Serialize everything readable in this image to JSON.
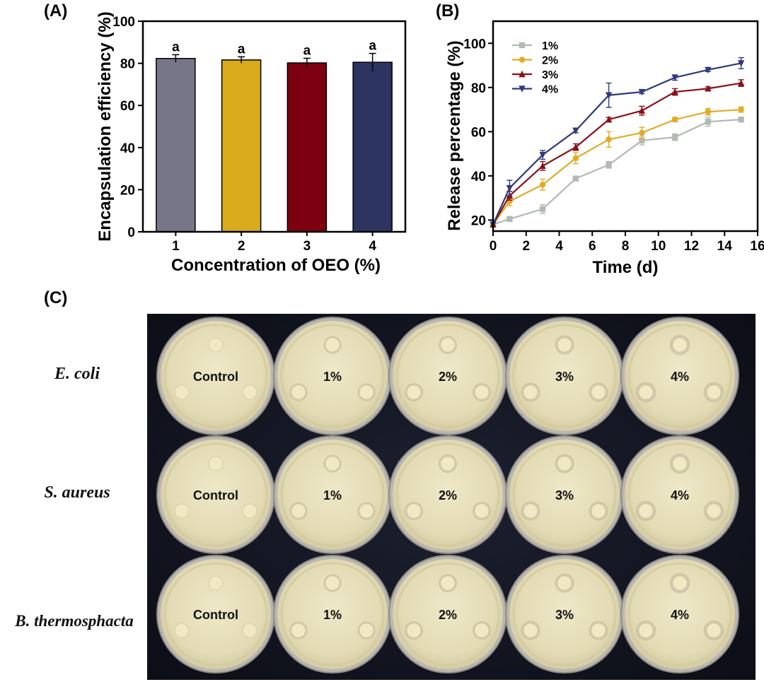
{
  "panels": {
    "a": "(A)",
    "b": "(B)",
    "c": "(C)"
  },
  "chart_data": [
    {
      "type": "bar",
      "xlabel": "Concentration of OEO (%)",
      "ylabel": "Encapsulation efficiency (%)",
      "ylim": [
        0,
        100
      ],
      "yticks": [
        0,
        20,
        40,
        60,
        80,
        100
      ],
      "categories": [
        "1",
        "2",
        "3",
        "4"
      ],
      "values": [
        82.3,
        81.6,
        80.2,
        80.5
      ],
      "errors": [
        1.8,
        1.5,
        2.2,
        4.2
      ],
      "significance": [
        "a",
        "a",
        "a",
        "a"
      ],
      "colors": [
        "#777688",
        "#d8aa1c",
        "#7d0010",
        "#2d3462"
      ]
    },
    {
      "type": "line",
      "xlabel": "Time (d)",
      "ylabel": "Release percentage (%)",
      "xlim": [
        0,
        16
      ],
      "ylim": [
        15,
        110
      ],
      "xticks": [
        0,
        2,
        4,
        6,
        8,
        10,
        12,
        14,
        16
      ],
      "yticks": [
        20,
        40,
        60,
        80,
        100
      ],
      "legend_position": "top-left",
      "x": [
        0,
        1,
        3,
        5,
        7,
        9,
        11,
        13,
        15
      ],
      "series": [
        {
          "name": "1%",
          "color": "#b3bab2",
          "marker": "square",
          "values": [
            18,
            20.5,
            25,
            38.8,
            45,
            56,
            57.5,
            64.5,
            65.5
          ],
          "errors": [
            0.5,
            1,
            2,
            0.8,
            1.5,
            2,
            1.5,
            2,
            1
          ]
        },
        {
          "name": "2%",
          "color": "#e0ac25",
          "marker": "circle",
          "values": [
            18,
            28.5,
            36,
            48,
            56.5,
            59.5,
            65.5,
            69,
            70
          ],
          "errors": [
            0.5,
            2,
            2.5,
            2.5,
            3.5,
            2.5,
            1,
            1.5,
            1.2
          ]
        },
        {
          "name": "3%",
          "color": "#8b1018",
          "marker": "triangle-up",
          "values": [
            18,
            31,
            44.5,
            53,
            65.5,
            69.5,
            78,
            79.5,
            82
          ],
          "errors": [
            0.5,
            2,
            2,
            1.5,
            1,
            2,
            1.5,
            0.8,
            1.5
          ]
        },
        {
          "name": "4%",
          "color": "#2f3a7a",
          "marker": "triangle-down",
          "values": [
            18,
            34.5,
            49.5,
            60.5,
            76.5,
            78,
            84.5,
            88,
            91
          ],
          "errors": [
            0.5,
            3.5,
            2,
            1,
            5.5,
            0.8,
            1.2,
            0.8,
            2.5
          ]
        }
      ]
    }
  ],
  "photo": {
    "column_labels": [
      "Control",
      "1%",
      "2%",
      "3%",
      "4%"
    ],
    "row_labels": [
      "E. coli",
      "S. aureus",
      "B. thermosphacta"
    ]
  }
}
